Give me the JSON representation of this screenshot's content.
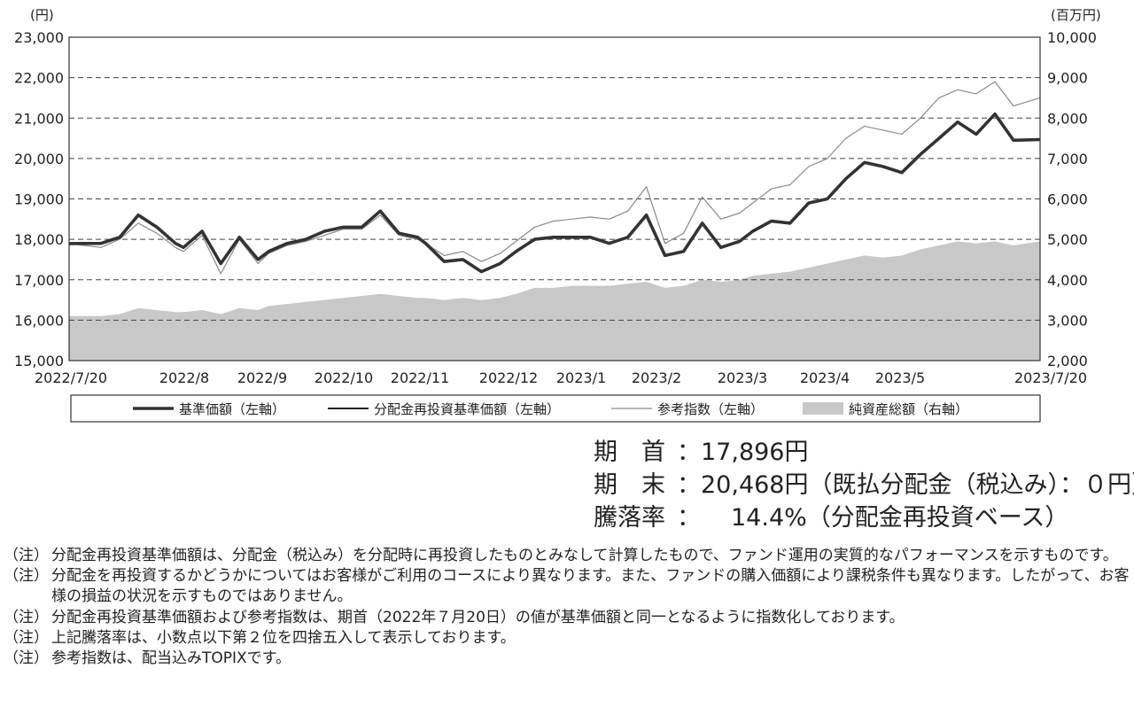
{
  "chart_data": {
    "type": "line",
    "left_axis": {
      "unit_label": "(円)",
      "ylim": [
        15000,
        23000
      ],
      "ticks": [
        "15,000",
        "16,000",
        "17,000",
        "18,000",
        "19,000",
        "20,000",
        "21,000",
        "22,000",
        "23,000"
      ]
    },
    "right_axis": {
      "unit_label": "(百万円)",
      "ylim": [
        2000,
        10000
      ],
      "ticks": [
        "2,000",
        "3,000",
        "4,000",
        "5,000",
        "6,000",
        "7,000",
        "8,000",
        "9,000",
        "10,000"
      ]
    },
    "x_ticks": [
      "2022/7/20",
      "2022/8",
      "2022/9",
      "2022/10",
      "2022/11",
      "2022/12",
      "2023/1",
      "2023/2",
      "2023/3",
      "2023/4",
      "2023/5",
      "2023/7/20"
    ],
    "grid": "horizontal dashed",
    "legend_position": "bottom",
    "series": [
      {
        "name": "基準価額（左軸）",
        "axis": "left",
        "style": "thick",
        "x": [
          "2022/7/20",
          "2022/8/1",
          "2022/8/8",
          "2022/8/15",
          "2022/8/22",
          "2022/8/29",
          "2022/9/1",
          "2022/9/8",
          "2022/9/15",
          "2022/9/22",
          "2022/9/29",
          "2022/10/3",
          "2022/10/10",
          "2022/10/17",
          "2022/10/24",
          "2022/10/31",
          "2022/11/7",
          "2022/11/14",
          "2022/11/21",
          "2022/11/28",
          "2022/12/1",
          "2022/12/8",
          "2022/12/15",
          "2022/12/22",
          "2022/12/29",
          "2023/1/4",
          "2023/1/11",
          "2023/1/18",
          "2023/1/25",
          "2023/2/1",
          "2023/2/8",
          "2023/2/15",
          "2023/2/22",
          "2023/3/1",
          "2023/3/8",
          "2023/3/15",
          "2023/3/22",
          "2023/3/29",
          "2023/4/3",
          "2023/4/10",
          "2023/4/17",
          "2023/4/24",
          "2023/5/1",
          "2023/5/8",
          "2023/5/15",
          "2023/5/22",
          "2023/5/29",
          "2023/6/5",
          "2023/6/12",
          "2023/6/19",
          "2023/6/26",
          "2023/7/3",
          "2023/7/10",
          "2023/7/20"
        ],
        "values": [
          17896,
          17900,
          18050,
          18600,
          18300,
          17900,
          17800,
          18200,
          17400,
          18050,
          17500,
          17700,
          17900,
          18000,
          18200,
          18300,
          18300,
          18700,
          18150,
          18050,
          17900,
          17450,
          17500,
          17200,
          17400,
          17700,
          18000,
          18050,
          18050,
          18050,
          17900,
          18050,
          18600,
          17600,
          17700,
          18400,
          17800,
          17950,
          18200,
          18450,
          18400,
          18900,
          19000,
          19500,
          19900,
          19800,
          19650,
          20100,
          20500,
          20900,
          20600,
          21100,
          20450,
          20468
        ]
      },
      {
        "name": "分配金再投資基準価額（左軸）",
        "axis": "left",
        "style": "medium",
        "x": [
          "2022/7/20",
          "2022/8/1",
          "2022/8/8",
          "2022/8/15",
          "2022/8/22",
          "2022/8/29",
          "2022/9/1",
          "2022/9/8",
          "2022/9/15",
          "2022/9/22",
          "2022/9/29",
          "2022/10/3",
          "2022/10/10",
          "2022/10/17",
          "2022/10/24",
          "2022/10/31",
          "2022/11/7",
          "2022/11/14",
          "2022/11/21",
          "2022/11/28",
          "2022/12/1",
          "2022/12/8",
          "2022/12/15",
          "2022/12/22",
          "2022/12/29",
          "2023/1/4",
          "2023/1/11",
          "2023/1/18",
          "2023/1/25",
          "2023/2/1",
          "2023/2/8",
          "2023/2/15",
          "2023/2/22",
          "2023/3/1",
          "2023/3/8",
          "2023/3/15",
          "2023/3/22",
          "2023/3/29",
          "2023/4/3",
          "2023/4/10",
          "2023/4/17",
          "2023/4/24",
          "2023/5/1",
          "2023/5/8",
          "2023/5/15",
          "2023/5/22",
          "2023/5/29",
          "2023/6/5",
          "2023/6/12",
          "2023/6/19",
          "2023/6/26",
          "2023/7/3",
          "2023/7/10",
          "2023/7/20"
        ],
        "values": [
          17896,
          17900,
          18050,
          18600,
          18300,
          17900,
          17800,
          18200,
          17400,
          18050,
          17500,
          17700,
          17900,
          18000,
          18200,
          18300,
          18300,
          18700,
          18150,
          18050,
          17900,
          17450,
          17500,
          17200,
          17400,
          17700,
          18000,
          18050,
          18050,
          18050,
          17900,
          18050,
          18600,
          17600,
          17700,
          18400,
          17800,
          17950,
          18200,
          18450,
          18400,
          18900,
          19000,
          19500,
          19900,
          19800,
          19650,
          20100,
          20500,
          20900,
          20600,
          21100,
          20450,
          20468
        ]
      },
      {
        "name": "参考指数（左軸）",
        "axis": "left",
        "style": "thin",
        "x": [
          "2022/7/20",
          "2022/8/1",
          "2022/8/8",
          "2022/8/15",
          "2022/8/22",
          "2022/8/29",
          "2022/9/1",
          "2022/9/8",
          "2022/9/15",
          "2022/9/22",
          "2022/9/29",
          "2022/10/3",
          "2022/10/10",
          "2022/10/17",
          "2022/10/24",
          "2022/10/31",
          "2022/11/7",
          "2022/11/14",
          "2022/11/21",
          "2022/11/28",
          "2022/12/1",
          "2022/12/8",
          "2022/12/15",
          "2022/12/22",
          "2022/12/29",
          "2023/1/4",
          "2023/1/11",
          "2023/1/18",
          "2023/1/25",
          "2023/2/1",
          "2023/2/8",
          "2023/2/15",
          "2023/2/22",
          "2023/3/1",
          "2023/3/8",
          "2023/3/15",
          "2023/3/22",
          "2023/3/29",
          "2023/4/3",
          "2023/4/10",
          "2023/4/17",
          "2023/4/24",
          "2023/5/1",
          "2023/5/8",
          "2023/5/15",
          "2023/5/22",
          "2023/5/29",
          "2023/6/5",
          "2023/6/12",
          "2023/6/19",
          "2023/6/26",
          "2023/7/3",
          "2023/7/10",
          "2023/7/20"
        ],
        "values": [
          17896,
          17800,
          18000,
          18400,
          18150,
          17800,
          17700,
          18100,
          17150,
          18000,
          17400,
          17650,
          17850,
          17950,
          18100,
          18250,
          18250,
          18600,
          18100,
          18000,
          17900,
          17600,
          17700,
          17450,
          17650,
          17950,
          18300,
          18450,
          18500,
          18550,
          18500,
          18700,
          19300,
          17900,
          18150,
          19050,
          18500,
          18650,
          18900,
          19250,
          19350,
          19800,
          20000,
          20500,
          20800,
          20700,
          20600,
          21000,
          21500,
          21700,
          21600,
          21900,
          21300,
          21500
        ]
      },
      {
        "name": "純資産総額（右軸）",
        "axis": "right",
        "style": "area",
        "x": [
          "2022/7/20",
          "2022/8/1",
          "2022/8/8",
          "2022/8/15",
          "2022/8/22",
          "2022/8/29",
          "2022/9/1",
          "2022/9/8",
          "2022/9/15",
          "2022/9/22",
          "2022/9/29",
          "2022/10/3",
          "2022/10/10",
          "2022/10/17",
          "2022/10/24",
          "2022/10/31",
          "2022/11/7",
          "2022/11/14",
          "2022/11/21",
          "2022/11/28",
          "2022/12/1",
          "2022/12/8",
          "2022/12/15",
          "2022/12/22",
          "2022/12/29",
          "2023/1/4",
          "2023/1/11",
          "2023/1/18",
          "2023/1/25",
          "2023/2/1",
          "2023/2/8",
          "2023/2/15",
          "2023/2/22",
          "2023/3/1",
          "2023/3/8",
          "2023/3/15",
          "2023/3/22",
          "2023/3/29",
          "2023/4/3",
          "2023/4/10",
          "2023/4/17",
          "2023/4/24",
          "2023/5/1",
          "2023/5/8",
          "2023/5/15",
          "2023/5/22",
          "2023/5/29",
          "2023/6/5",
          "2023/6/12",
          "2023/6/19",
          "2023/6/26",
          "2023/7/3",
          "2023/7/10",
          "2023/7/20"
        ],
        "values": [
          3100,
          3100,
          3150,
          3300,
          3250,
          3200,
          3200,
          3250,
          3150,
          3300,
          3250,
          3350,
          3400,
          3450,
          3500,
          3550,
          3600,
          3650,
          3600,
          3550,
          3550,
          3500,
          3550,
          3500,
          3550,
          3650,
          3800,
          3800,
          3850,
          3850,
          3850,
          3900,
          3950,
          3800,
          3850,
          4000,
          3950,
          4000,
          4100,
          4150,
          4200,
          4300,
          4400,
          4500,
          4600,
          4550,
          4600,
          4750,
          4850,
          4950,
          4900,
          4950,
          4850,
          4950
        ]
      }
    ]
  },
  "summary": {
    "start_label": "期　首",
    "start_value": "17,896円",
    "end_label": "期　末",
    "end_value": "20,468円",
    "end_note": "（既払分配金（税込み）：０円）",
    "rate_label": "騰落率",
    "rate_value": "14.4%",
    "rate_note": "（分配金再投資ベース）",
    "sep": "："
  },
  "notes": [
    {
      "mark": "（注）",
      "text": "分配金再投資基準価額は、分配金（税込み）を分配時に再投資したものとみなして計算したもので、ファンド運用の実質的なパフォーマンスを示すものです。"
    },
    {
      "mark": "（注）",
      "text": "分配金を再投資するかどうかについてはお客様がご利用のコースにより異なります。また、ファンドの購入価額により課税条件も異なります。したがって、お客様の損益の状況を示すものではありません。"
    },
    {
      "mark": "（注）",
      "text": "分配金再投資基準価額および参考指数は、期首（2022年７月20日）の値が基準価額と同一となるように指数化しております。"
    },
    {
      "mark": "（注）",
      "text": "上記騰落率は、小数点以下第２位を四捨五入して表示しております。"
    },
    {
      "mark": "（注）",
      "text": "参考指数は、配当込みTOPIXです。"
    }
  ],
  "colors": {
    "base": "#333333",
    "reinvest": "#222222",
    "index": "#8a8a8a",
    "area": "#c8c8c8",
    "grid": "#444444"
  }
}
